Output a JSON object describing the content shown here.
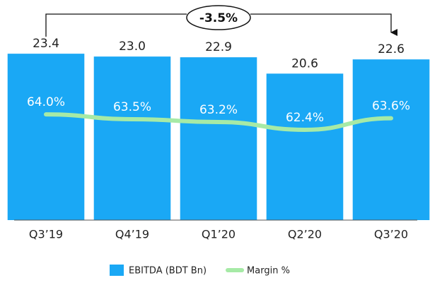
{
  "chart_data": {
    "type": "bar",
    "categories": [
      "Q3’19",
      "Q4’19",
      "Q1’20",
      "Q2’20",
      "Q3’20"
    ],
    "series": [
      {
        "name": "EBITDA (BDT Bn)",
        "type": "bar",
        "color": "#1aa8f5",
        "values": [
          23.4,
          23.0,
          22.9,
          20.6,
          22.6
        ],
        "value_labels": [
          "23.4",
          "23.0",
          "22.9",
          "20.6",
          "22.6"
        ]
      },
      {
        "name": "Margin %",
        "type": "line",
        "axis": "y2",
        "color": "#a6eaa6",
        "values": [
          64.0,
          63.5,
          63.2,
          62.4,
          63.6
        ],
        "value_labels": [
          "64.0%",
          "63.5%",
          "63.2%",
          "62.4%",
          "63.6%"
        ]
      }
    ],
    "ylim": [
      0,
      25
    ],
    "y2lim": [
      53,
      71.5
    ],
    "annotation": "-3.5%",
    "legend": "bottom"
  }
}
